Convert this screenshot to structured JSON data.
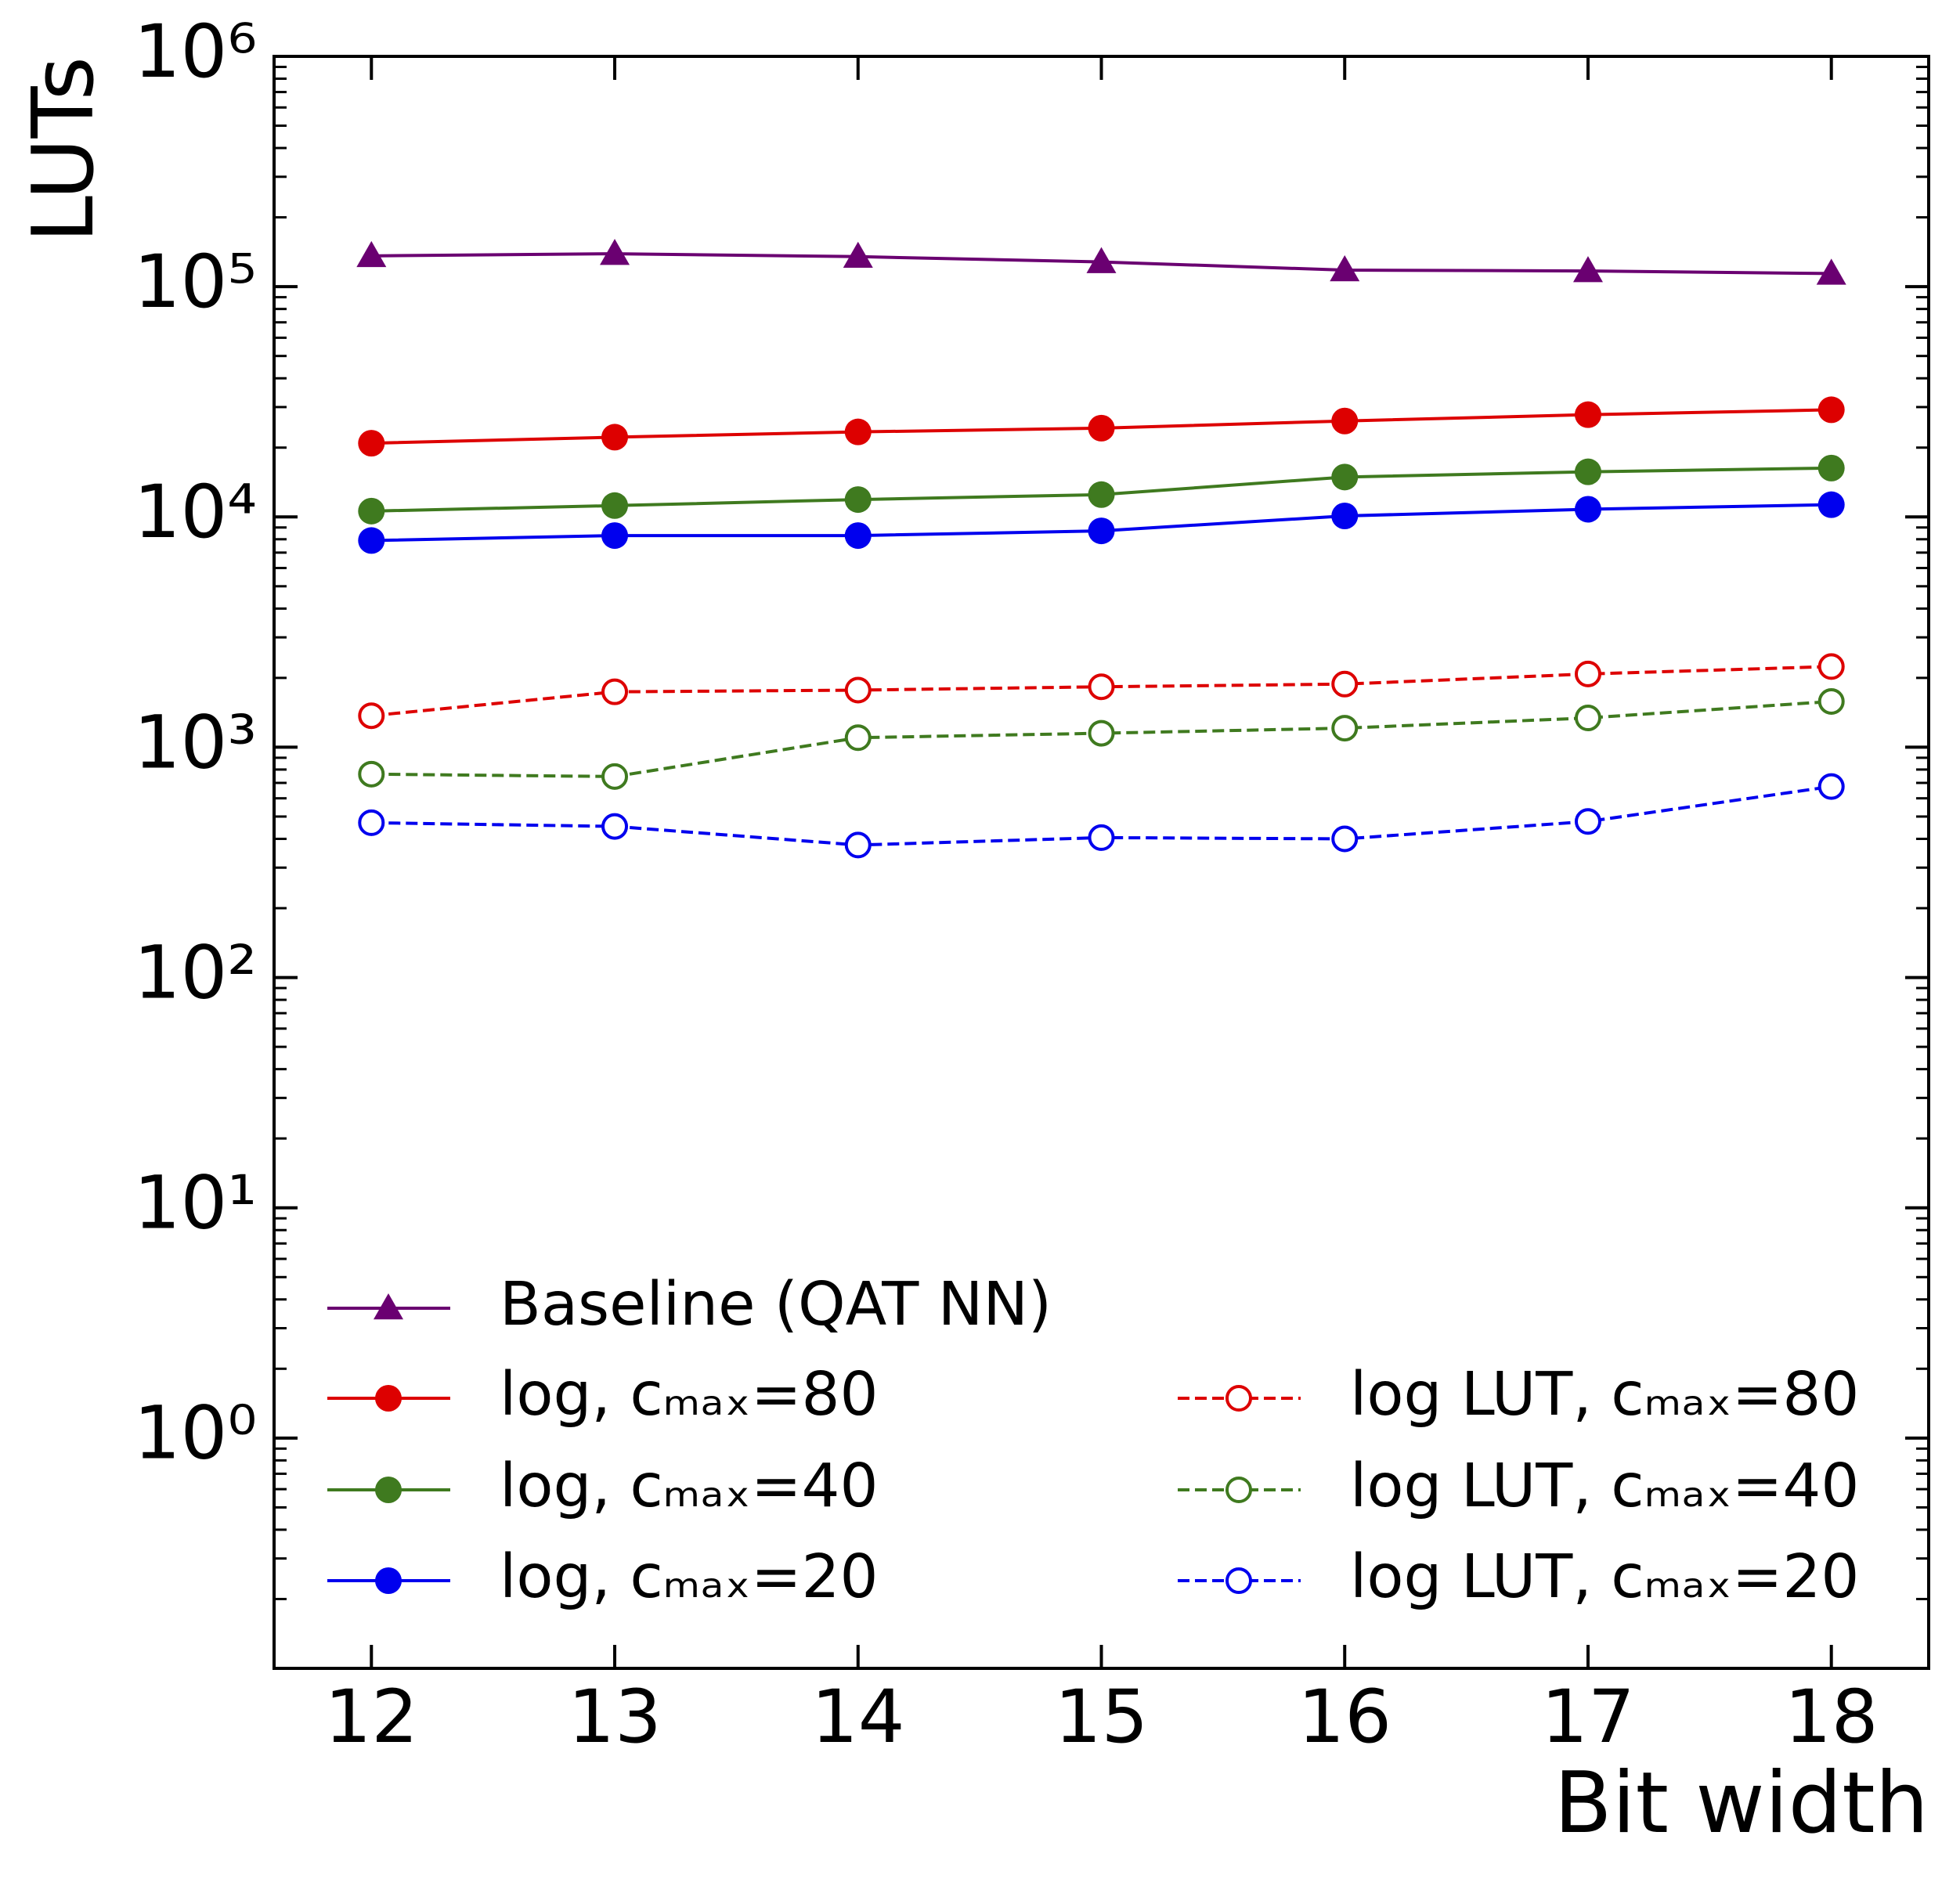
{
  "chart_data": {
    "type": "line",
    "x_label": "Bit width",
    "y_label": "LUTs",
    "x": [
      12,
      13,
      14,
      15,
      16,
      17,
      18
    ],
    "xlim": [
      11.6,
      18.4
    ],
    "xticks": [
      12,
      13,
      14,
      15,
      16,
      17,
      18
    ],
    "ylim": [
      0.1,
      1000000
    ],
    "log_y": true,
    "yticks": [
      {
        "value": 1,
        "label": "10⁰"
      },
      {
        "value": 10,
        "label": "10¹"
      },
      {
        "value": 100,
        "label": "10²"
      },
      {
        "value": 1000,
        "label": "10³"
      },
      {
        "value": 10000,
        "label": "10⁴"
      },
      {
        "value": 100000,
        "label": "10⁵"
      },
      {
        "value": 1000000,
        "label": "10⁶"
      }
    ],
    "legend": "lower left",
    "series": [
      {
        "name": "Baseline (QAT NN)",
        "color": "#6a0071",
        "marker": "triangle",
        "linestyle": "solid",
        "values": [
          136000,
          139000,
          135000,
          128000,
          118000,
          117000,
          114000
        ]
      },
      {
        "name": "log, cₘₐₓ=80",
        "color": "#dd0000",
        "marker": "circle",
        "linestyle": "solid",
        "values": [
          20900,
          22200,
          23400,
          24300,
          26100,
          27800,
          29200
        ]
      },
      {
        "name": "log, cₘₐₓ=40",
        "color": "#3f7a1f",
        "marker": "circle",
        "linestyle": "solid",
        "values": [
          10600,
          11200,
          11900,
          12500,
          14900,
          15700,
          16300
        ]
      },
      {
        "name": "log, cₘₐₓ=20",
        "color": "#0000ee",
        "marker": "circle",
        "linestyle": "solid",
        "values": [
          7900,
          8300,
          8300,
          8700,
          10100,
          10800,
          11300
        ]
      },
      {
        "name": "log LUT, cₘₐₓ=80",
        "color": "#dd0000",
        "marker": "open-circle",
        "linestyle": "dashed",
        "values": [
          1370,
          1740,
          1770,
          1830,
          1880,
          2080,
          2240
        ]
      },
      {
        "name": "log LUT, cₘₐₓ=40",
        "color": "#3f7a1f",
        "marker": "open-circle",
        "linestyle": "dashed",
        "values": [
          764,
          746,
          1100,
          1150,
          1210,
          1340,
          1580
        ]
      },
      {
        "name": "log LUT, cₘₐₓ=20",
        "color": "#0000ee",
        "marker": "open-circle",
        "linestyle": "dashed",
        "values": [
          470,
          453,
          376,
          405,
          400,
          476,
          675
        ]
      }
    ]
  }
}
